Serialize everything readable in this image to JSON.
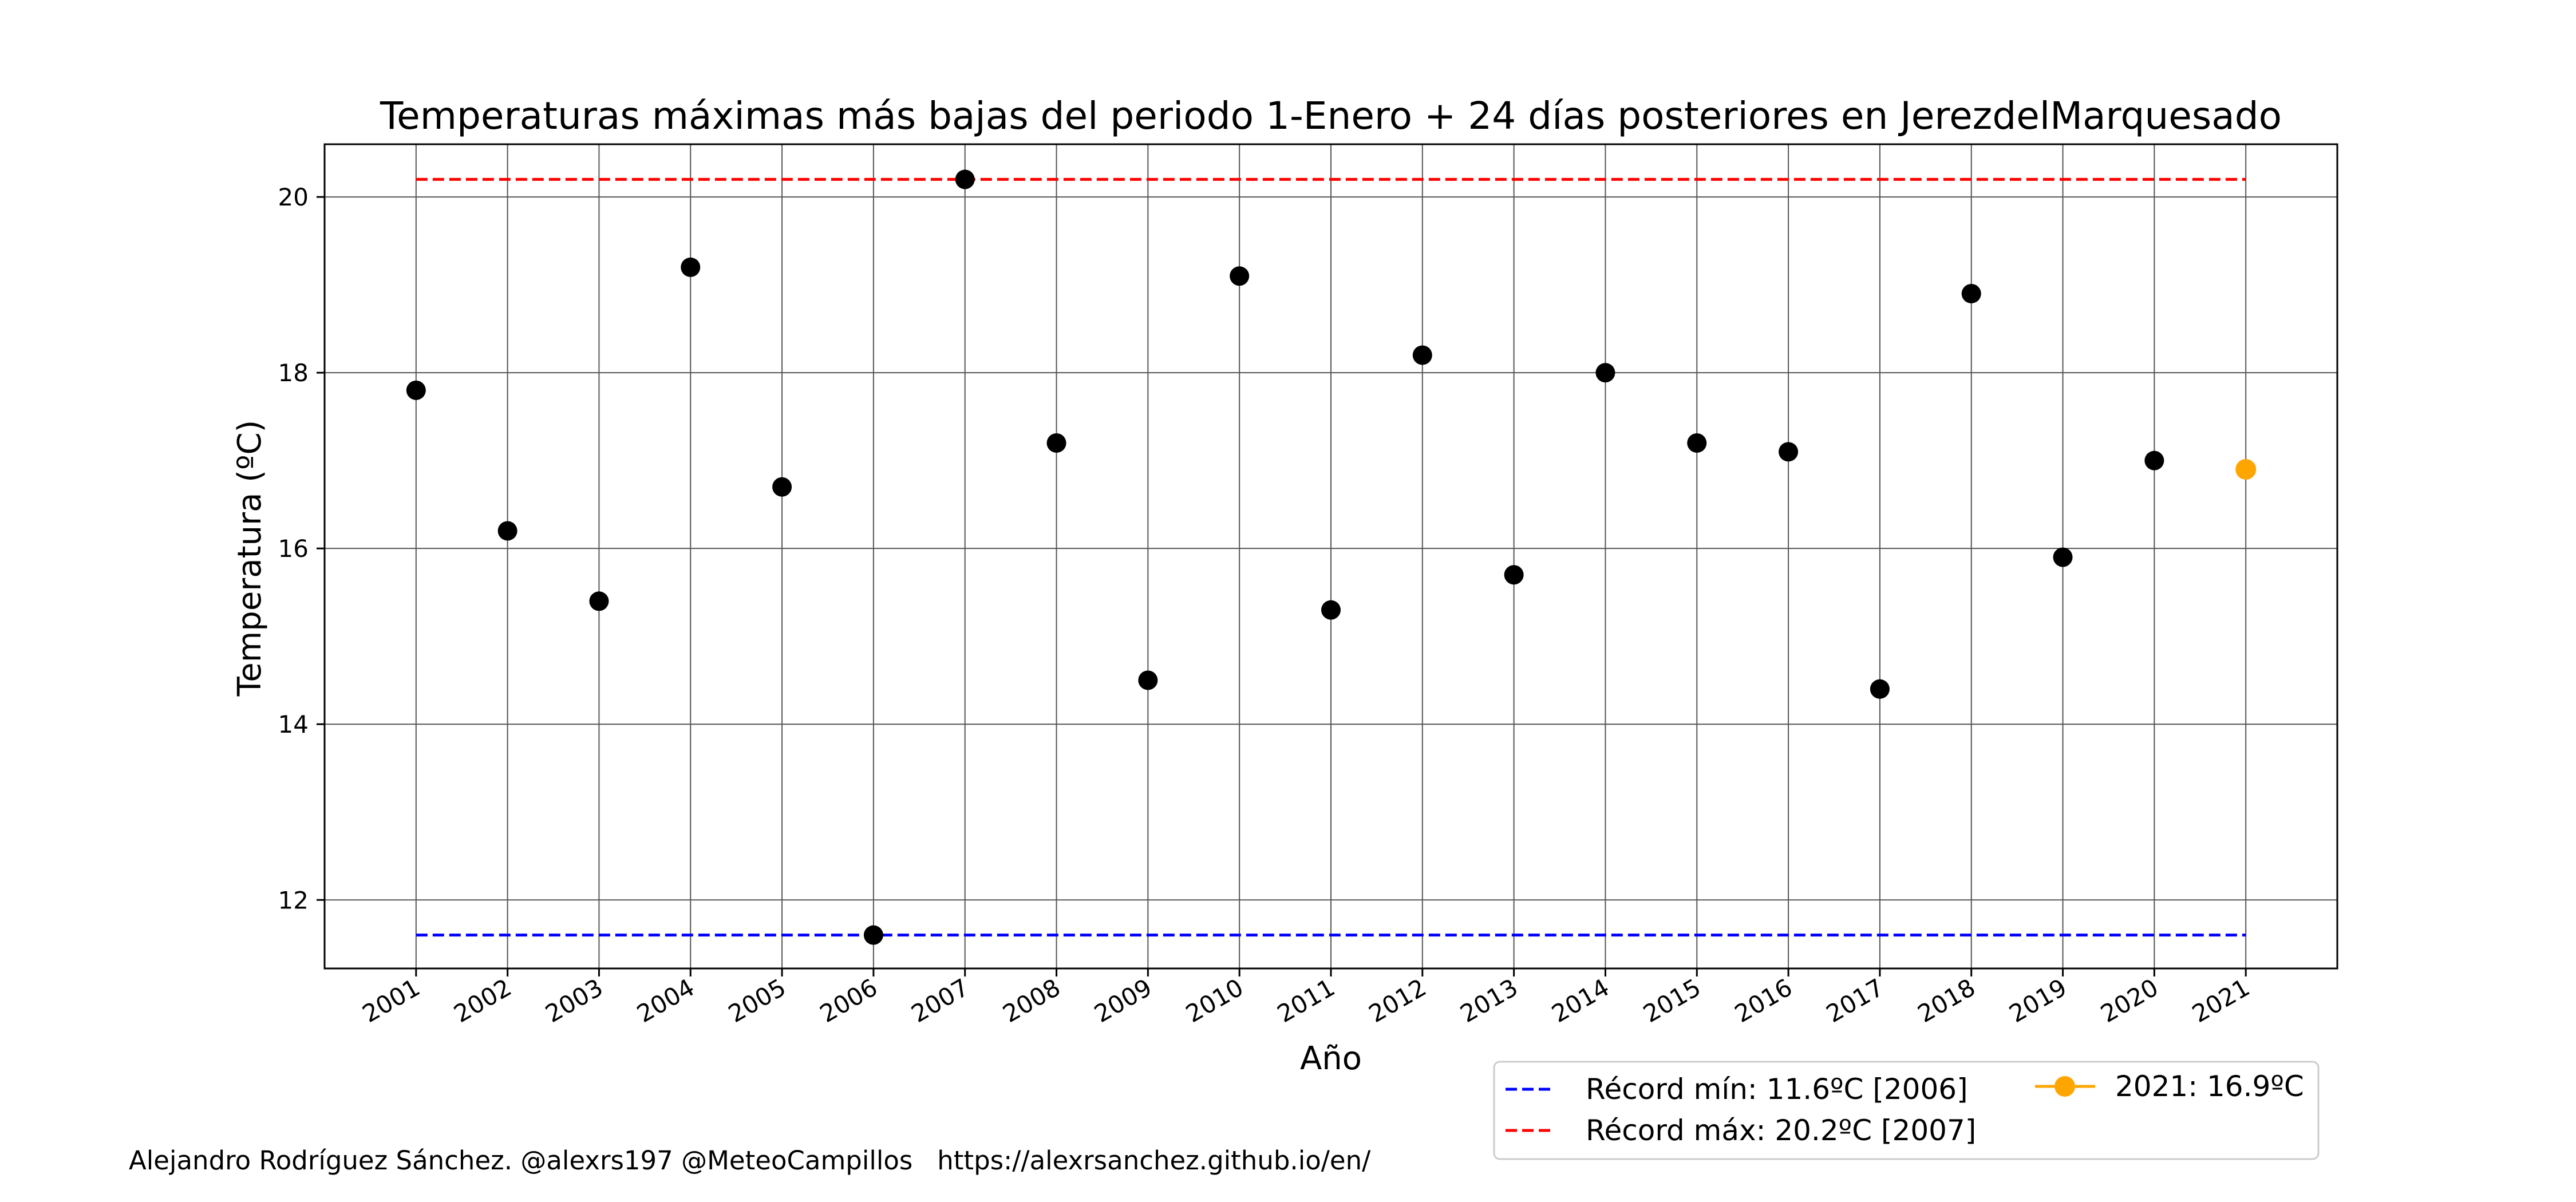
{
  "chart_data": {
    "type": "scatter",
    "title": "Temperaturas máximas más bajas del periodo 1-Enero + 24 días posteriores en JerezdelMarquesado",
    "xlabel": "Año",
    "ylabel": "Temperatura (ºC)",
    "xlim": [
      2000.0,
      2022.0
    ],
    "ylim": [
      11.22,
      20.6
    ],
    "yticks": [
      12,
      14,
      16,
      18,
      20
    ],
    "grid": true,
    "legend_position": "lower-right, outside below the axes",
    "series": [
      {
        "color": "#000000",
        "x": [
          2001,
          2002,
          2003,
          2004,
          2005,
          2006,
          2007,
          2008,
          2009,
          2010,
          2011,
          2012,
          2013,
          2014,
          2015,
          2016,
          2017,
          2018,
          2019,
          2020
        ],
        "y": [
          17.8,
          16.2,
          15.4,
          19.2,
          16.7,
          11.6,
          20.2,
          17.2,
          14.5,
          19.1,
          15.3,
          18.2,
          15.7,
          18.0,
          17.2,
          17.1,
          14.4,
          18.9,
          15.9,
          17.0
        ]
      },
      {
        "name": "2021: 16.9ºC",
        "color": "#FFA500",
        "x": [
          2021
        ],
        "y": [
          16.9
        ]
      }
    ],
    "reference_lines": [
      {
        "name": "Récord mín: 11.6ºC [2006]",
        "value": 11.6,
        "color": "#0000FF",
        "style": "dashed"
      },
      {
        "name": "Récord máx: 20.2ºC [2007]",
        "value": 20.2,
        "color": "#FF0000",
        "style": "dashed"
      }
    ],
    "xtick_labels": [
      "2001",
      "2002",
      "2003",
      "2004",
      "2005",
      "2006",
      "2007",
      "2008",
      "2009",
      "2010",
      "2011",
      "2012",
      "2013",
      "2014",
      "2015",
      "2016",
      "2017",
      "2018",
      "2019",
      "2020",
      "2021"
    ]
  },
  "footer": {
    "credit": "Alejandro Rodríguez Sánchez. @alexrs197 @MeteoCampillos   https://alexrsanchez.github.io/en/"
  }
}
